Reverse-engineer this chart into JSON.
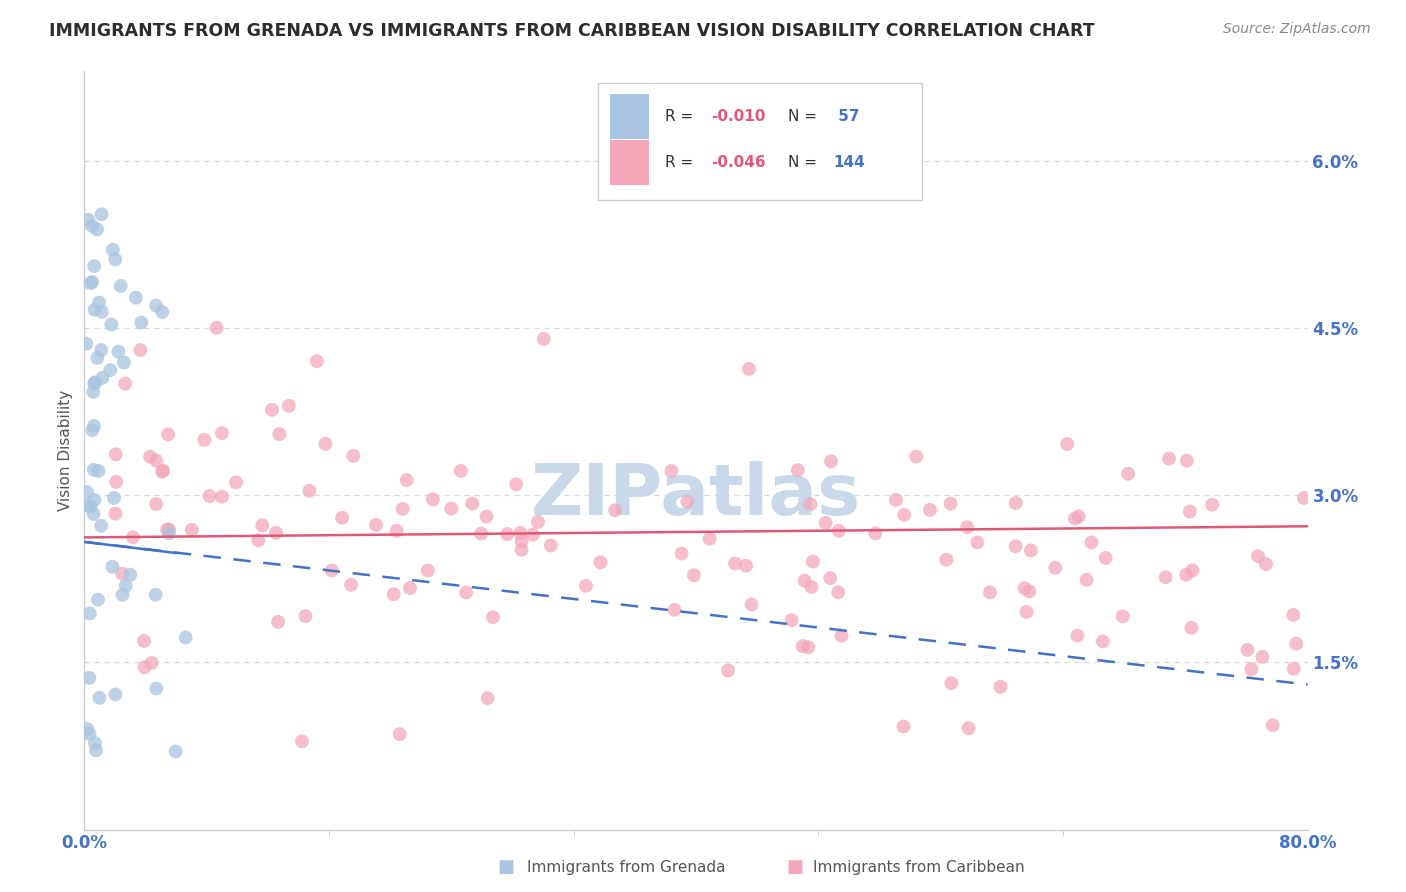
{
  "title": "IMMIGRANTS FROM GRENADA VS IMMIGRANTS FROM CARIBBEAN VISION DISABILITY CORRELATION CHART",
  "source": "Source: ZipAtlas.com",
  "ylabel": "Vision Disability",
  "ytick_labels": [
    "1.5%",
    "3.0%",
    "4.5%",
    "6.0%"
  ],
  "ytick_values": [
    0.015,
    0.03,
    0.045,
    0.06
  ],
  "xlim": [
    0.0,
    0.8
  ],
  "ylim": [
    0.0,
    0.068
  ],
  "blue_color": "#a8c4e0",
  "blue_line_color": "#4472c4",
  "pink_color": "#f4a7b9",
  "pink_line_color": "#e05878",
  "title_color": "#2d2d2d",
  "source_color": "#888888",
  "axis_color": "#cccccc",
  "grid_color": "#d8d8d8",
  "watermark_color": "#c8d8e8",
  "r_value_color": "#e05878",
  "n_value_color": "#4472c4",
  "pink_line_y0": 0.0262,
  "pink_line_y1": 0.0272,
  "blue_line_y0": 0.0258,
  "blue_line_y1": 0.013
}
